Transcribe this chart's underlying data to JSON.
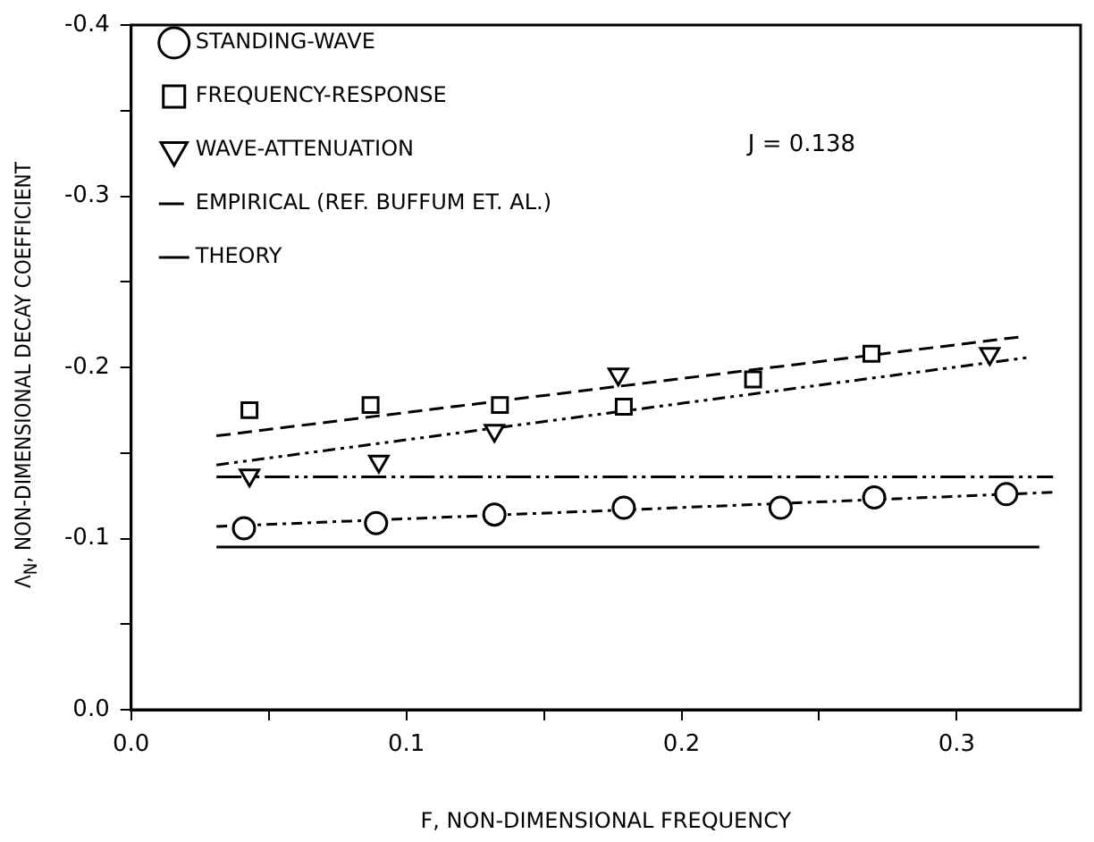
{
  "chart_data": {
    "type": "scatter",
    "xlabel": "F, NON-DIMENSIONAL FREQUENCY",
    "ylabel": "Λ$_{N}$, NON-DIMENSIONAL DECAY COEFFICIENT",
    "xlim": [
      0,
      0.345
    ],
    "ylim": [
      0,
      -0.4
    ],
    "xticks": [
      {
        "value": 0,
        "label": "0.0"
      },
      {
        "value": 0.05,
        "label": null
      },
      0.1,
      {
        "value": 0.15,
        "label": null
      },
      0.2,
      {
        "value": 0.25,
        "label": null
      },
      0.3
    ],
    "yticks": [
      {
        "value": 0,
        "label": "0.0"
      },
      {
        "value": -0.05,
        "label": null
      },
      -0.1,
      {
        "value": -0.15,
        "label": null
      },
      -0.2,
      {
        "value": -0.25,
        "label": null
      },
      -0.3,
      {
        "value": -0.35,
        "label": null
      },
      -0.4
    ],
    "grid": false,
    "legend": "top left",
    "annotations": [
      "J = 0.138"
    ],
    "series": [
      {
        "name": "STANDING-WAVE",
        "marker": "circle",
        "color": "#000000",
        "x": [
          0.041,
          0.089,
          0.132,
          0.179,
          0.236,
          0.27,
          0.318
        ],
        "values": [
          -0.106,
          -0.109,
          -0.114,
          -0.118,
          -0.118,
          -0.124,
          -0.126
        ]
      },
      {
        "type": "line",
        "marker": "none",
        "line_style": "dashdot",
        "color": "#000000",
        "x": [
          0.031,
          0.335
        ],
        "values": [
          -0.107,
          -0.127
        ]
      },
      {
        "name": "FREQUENCY-RESPONSE",
        "marker": "square",
        "color": "#000000",
        "x": [
          0.043,
          0.087,
          0.134,
          0.179,
          0.226,
          0.269
        ],
        "values": [
          -0.175,
          -0.178,
          -0.178,
          -0.177,
          -0.193,
          -0.208
        ]
      },
      {
        "type": "line",
        "marker": "none",
        "line_style": "dashed",
        "color": "#000000",
        "x": [
          0.031,
          0.324
        ],
        "values": [
          -0.16,
          -0.218
        ]
      },
      {
        "name": "WAVE-ATTENUATION",
        "marker": "triangle",
        "color": "#000000",
        "x": [
          0.043,
          0.09,
          0.132,
          0.177,
          0.312
        ],
        "values": [
          -0.137,
          -0.145,
          -0.163,
          -0.196,
          -0.208
        ]
      },
      {
        "type": "line",
        "marker": "none",
        "line_style": "dashdotdot",
        "color": "#000000",
        "x": [
          0.031,
          0.327
        ],
        "values": [
          -0.143,
          -0.206
        ]
      },
      {
        "name": "EMPIRICAL (REF. BUFFUM ET. AL.)",
        "type": "line",
        "marker": "none",
        "line_style": "longdashdotdot",
        "color": "#000000",
        "x": [
          0.031,
          0.335
        ],
        "values": [
          -0.136,
          -0.136
        ]
      },
      {
        "name": "THEORY",
        "type": "line",
        "marker": "none",
        "line_style": "solid",
        "color": "#000000",
        "x": [
          0.031,
          0.33
        ],
        "values": [
          -0.095,
          -0.095
        ]
      }
    ]
  }
}
